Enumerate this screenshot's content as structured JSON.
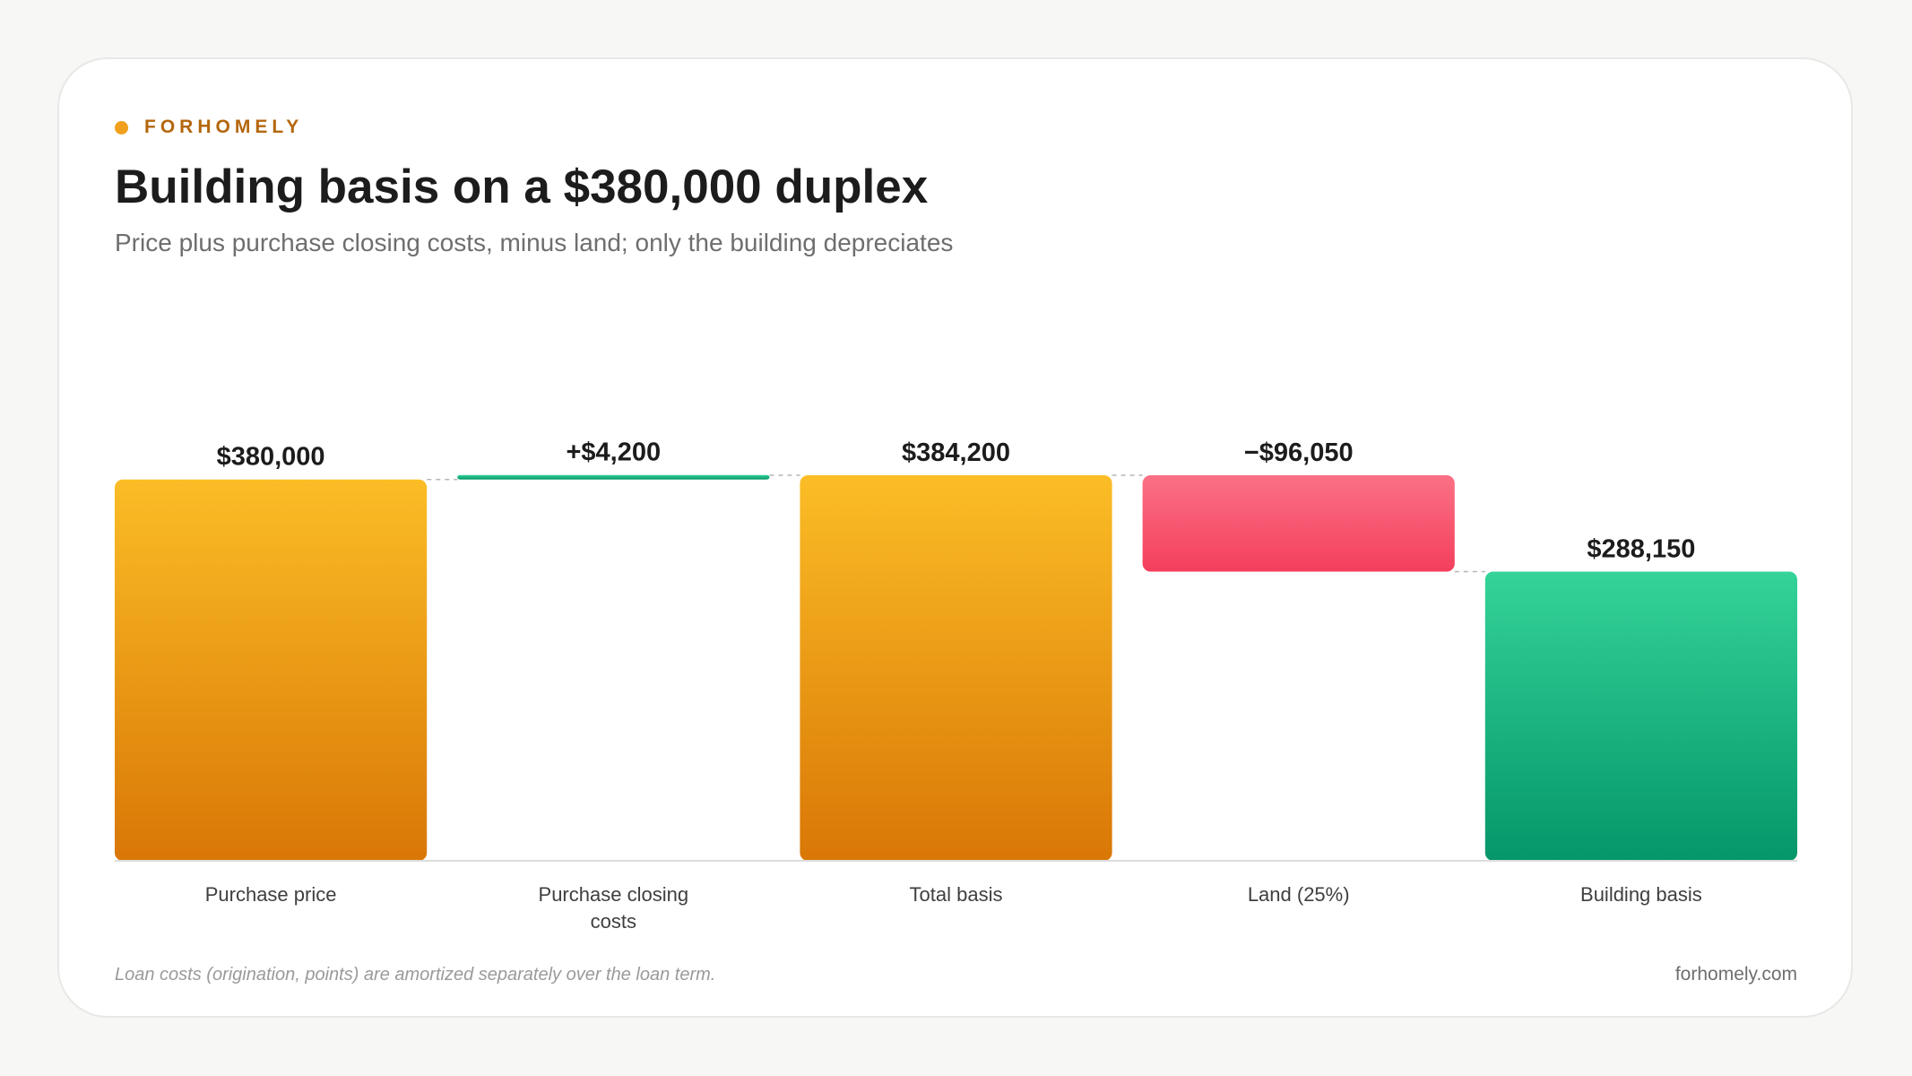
{
  "brand": {
    "name": "FORHOMELY",
    "dot_color": "#f0a01c"
  },
  "title": "Building basis on a $380,000 duplex",
  "subtitle": "Price plus purchase closing costs, minus land; only the building depreciates",
  "footnote": "Loan costs (origination, points) are amortized separately over the loan term.",
  "site": "forhomely.com",
  "colors": {
    "total_top": "#fbbd26",
    "total_bottom": "#d97706",
    "increase_top": "#34d399",
    "increase_bottom": "#059669",
    "decrease_top": "#fb7185",
    "decrease_bottom": "#f43f5e",
    "result_top": "#34d399",
    "result_bottom": "#059669"
  },
  "chart_data": {
    "type": "bar",
    "subtype": "waterfall",
    "categories": [
      "Purchase price",
      "Purchase closing costs",
      "Total basis",
      "Land (25%)",
      "Building basis"
    ],
    "category_lines": [
      [
        "Purchase price"
      ],
      [
        "Purchase closing",
        "costs"
      ],
      [
        "Total basis"
      ],
      [
        "Land (25%)"
      ],
      [
        "Building basis"
      ]
    ],
    "values": [
      380000,
      4200,
      384200,
      -96050,
      288150
    ],
    "kinds": [
      "total",
      "increase",
      "total",
      "decrease",
      "result"
    ],
    "value_labels": [
      "$380,000",
      "+$4,200",
      "$384,200",
      "−$96,050",
      "$288,150"
    ],
    "ylim": [
      0,
      384200
    ],
    "grid": false,
    "legend": "none"
  }
}
